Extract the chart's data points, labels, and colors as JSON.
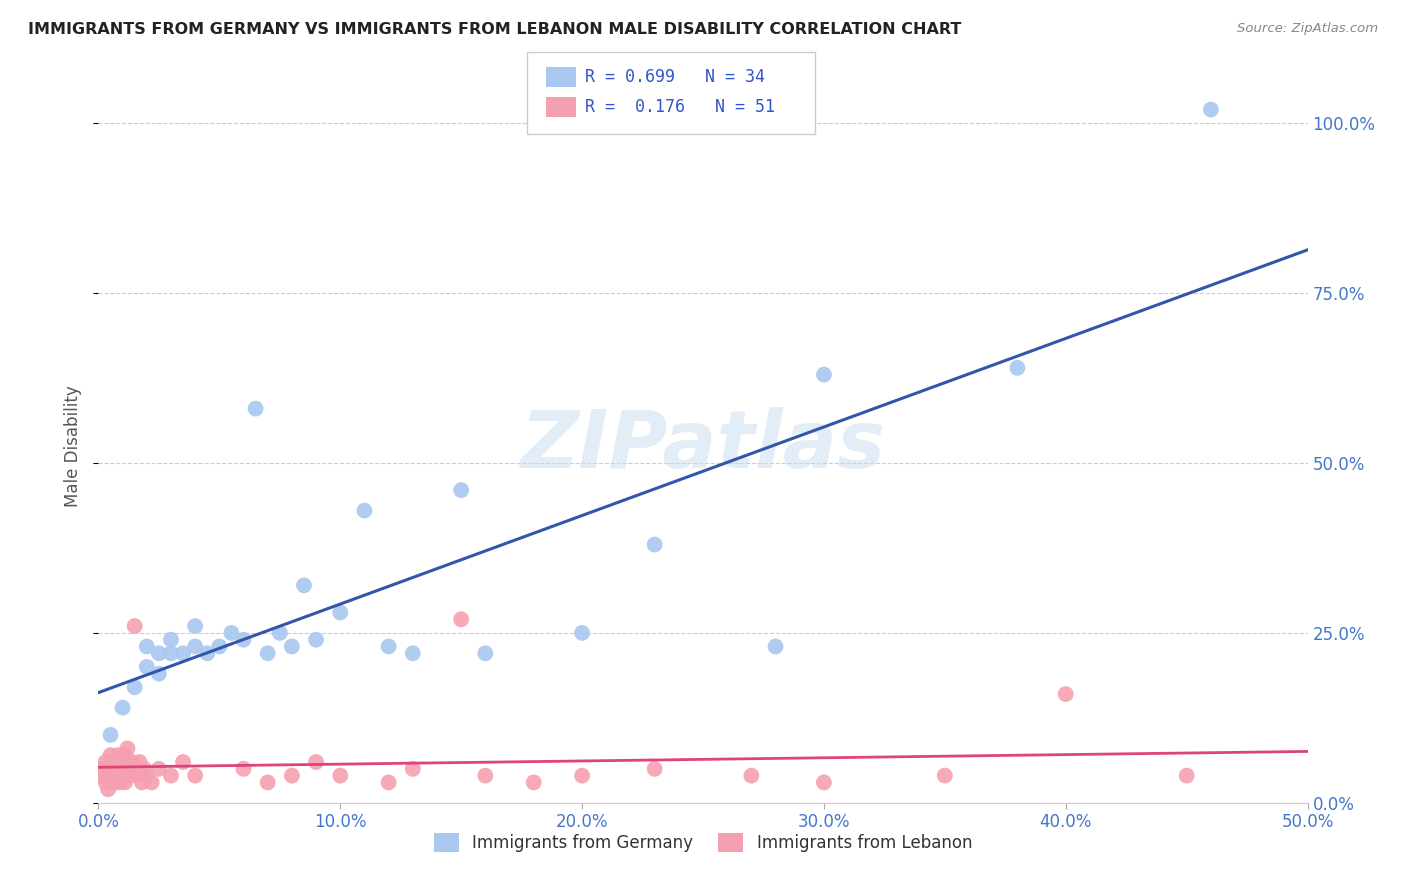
{
  "title": "IMMIGRANTS FROM GERMANY VS IMMIGRANTS FROM LEBANON MALE DISABILITY CORRELATION CHART",
  "source": "Source: ZipAtlas.com",
  "ylabel": "Male Disability",
  "xlim": [
    0.0,
    0.5
  ],
  "ylim": [
    0.0,
    1.05
  ],
  "germany_color": "#a8c8f0",
  "germany_line_color": "#3355aa",
  "lebanon_color": "#f5a0b0",
  "lebanon_line_color": "#dd4477",
  "legend_germany_R": "0.699",
  "legend_germany_N": "34",
  "legend_lebanon_R": "0.176",
  "legend_lebanon_N": "51",
  "watermark": "ZIPatlas",
  "germany_x": [
    0.005,
    0.01,
    0.015,
    0.02,
    0.02,
    0.025,
    0.025,
    0.03,
    0.03,
    0.035,
    0.04,
    0.04,
    0.045,
    0.05,
    0.055,
    0.06,
    0.065,
    0.07,
    0.075,
    0.08,
    0.085,
    0.09,
    0.1,
    0.11,
    0.12,
    0.13,
    0.15,
    0.16,
    0.2,
    0.23,
    0.28,
    0.3,
    0.38,
    0.46
  ],
  "germany_y": [
    0.1,
    0.14,
    0.17,
    0.2,
    0.23,
    0.19,
    0.22,
    0.24,
    0.22,
    0.22,
    0.23,
    0.26,
    0.22,
    0.23,
    0.25,
    0.24,
    0.58,
    0.22,
    0.25,
    0.23,
    0.32,
    0.24,
    0.28,
    0.43,
    0.23,
    0.22,
    0.46,
    0.22,
    0.25,
    0.38,
    0.23,
    0.63,
    0.64,
    1.02
  ],
  "lebanon_x": [
    0.001,
    0.002,
    0.003,
    0.003,
    0.004,
    0.005,
    0.005,
    0.006,
    0.006,
    0.007,
    0.007,
    0.008,
    0.008,
    0.009,
    0.009,
    0.01,
    0.01,
    0.011,
    0.011,
    0.012,
    0.012,
    0.013,
    0.014,
    0.015,
    0.016,
    0.017,
    0.018,
    0.019,
    0.02,
    0.022,
    0.025,
    0.03,
    0.035,
    0.04,
    0.06,
    0.07,
    0.08,
    0.09,
    0.1,
    0.12,
    0.13,
    0.15,
    0.16,
    0.18,
    0.2,
    0.23,
    0.27,
    0.3,
    0.35,
    0.4,
    0.45
  ],
  "lebanon_y": [
    0.05,
    0.04,
    0.03,
    0.06,
    0.02,
    0.04,
    0.07,
    0.03,
    0.05,
    0.06,
    0.03,
    0.07,
    0.04,
    0.05,
    0.03,
    0.06,
    0.04,
    0.07,
    0.03,
    0.05,
    0.08,
    0.04,
    0.06,
    0.26,
    0.04,
    0.06,
    0.03,
    0.05,
    0.04,
    0.03,
    0.05,
    0.04,
    0.06,
    0.04,
    0.05,
    0.03,
    0.04,
    0.06,
    0.04,
    0.03,
    0.05,
    0.27,
    0.04,
    0.03,
    0.04,
    0.05,
    0.04,
    0.03,
    0.04,
    0.16,
    0.04
  ]
}
